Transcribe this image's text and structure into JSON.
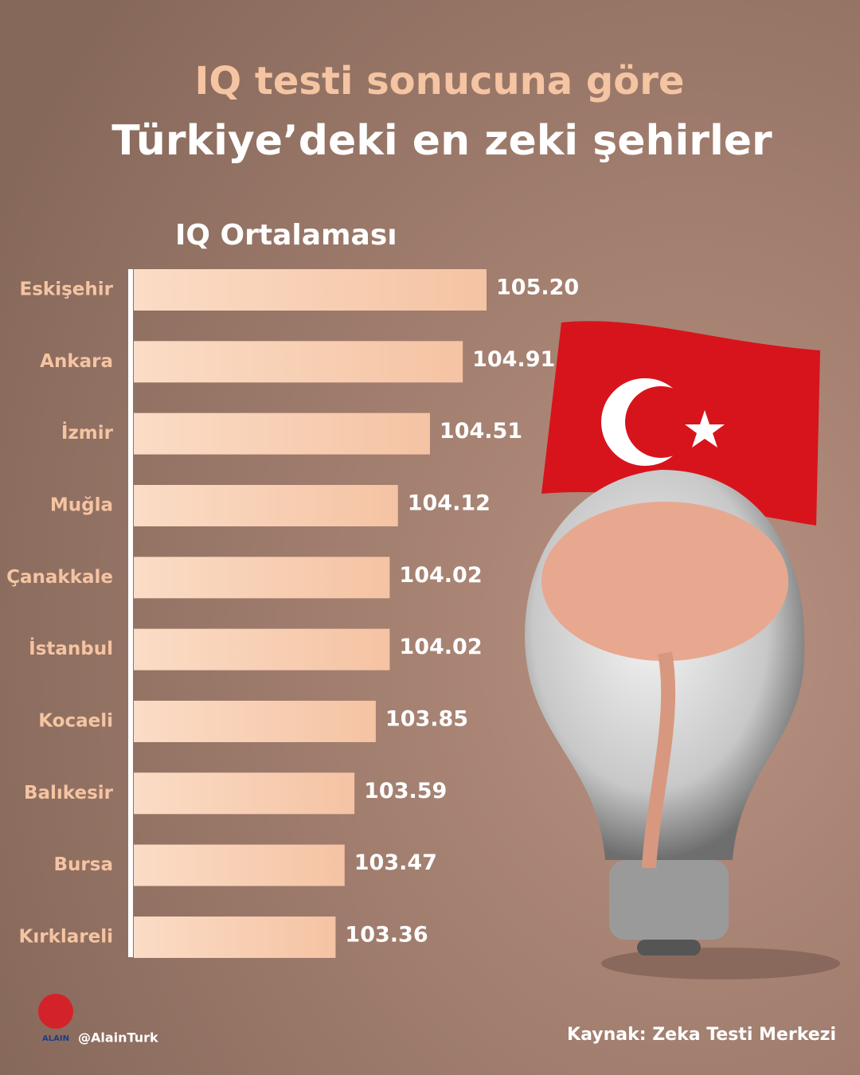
{
  "chart_data": {
    "type": "bar",
    "orientation": "horizontal",
    "title": "IQ testi sonucuna göre",
    "subtitle": "Türkiye’deki en zeki şehirler",
    "x_label": "IQ Ortalaması",
    "categories": [
      "Eskişehir",
      "Ankara",
      "İzmir",
      "Muğla",
      "Çanakkale",
      "İstanbul",
      "Kocaeli",
      "Balıkesir",
      "Bursa",
      "Kırklareli"
    ],
    "values": [
      105.2,
      104.91,
      104.51,
      104.12,
      104.02,
      104.02,
      103.85,
      103.59,
      103.47,
      103.36
    ],
    "value_labels": [
      "105.20",
      "104.91",
      "104.51",
      "104.12",
      "104.02",
      "104.02",
      "103.85",
      "103.59",
      "103.47",
      "103.36"
    ],
    "xlim": [
      100.9,
      105.2
    ],
    "color": "#f8d0b4",
    "source": "Kaynak: Zeka Testi Merkezi",
    "handle": "@AlainTurk",
    "logo_text": "ALAIN"
  }
}
